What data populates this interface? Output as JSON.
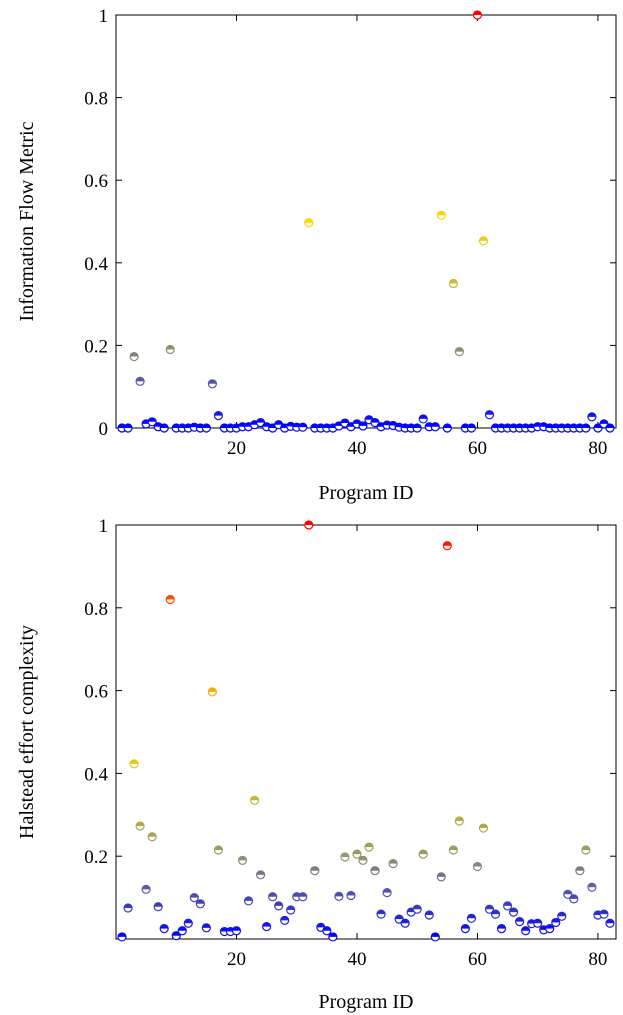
{
  "chart_data": [
    {
      "type": "scatter",
      "title": "",
      "xlabel": "Program ID",
      "ylabel": "Information Flow Metric",
      "xlim": [
        0,
        83
      ],
      "ylim": [
        0,
        1
      ],
      "xticks": [
        20,
        40,
        60,
        80
      ],
      "yticks": [
        0,
        0.2,
        0.4,
        0.6,
        0.8,
        1
      ],
      "ytick_labels": [
        "0",
        "0.2",
        "0.4",
        "0.6",
        "0.8",
        "1"
      ],
      "grid": false,
      "legend": "none",
      "color_scale": {
        "low": "#0000ff",
        "mid": "#999966",
        "high": "#ffd700",
        "max": "#ff0000"
      },
      "x": [
        1,
        2,
        3,
        4,
        5,
        6,
        7,
        8,
        9,
        10,
        11,
        12,
        13,
        14,
        15,
        16,
        17,
        18,
        19,
        20,
        21,
        22,
        23,
        24,
        25,
        26,
        27,
        28,
        29,
        30,
        31,
        32,
        33,
        34,
        35,
        36,
        37,
        38,
        39,
        40,
        41,
        42,
        43,
        44,
        45,
        46,
        47,
        48,
        49,
        50,
        51,
        52,
        53,
        54,
        55,
        56,
        57,
        58,
        59,
        60,
        61,
        62,
        63,
        64,
        65,
        66,
        67,
        68,
        69,
        70,
        71,
        72,
        73,
        74,
        75,
        76,
        77,
        78,
        79,
        80,
        81,
        82
      ],
      "y": [
        0,
        0,
        0.173,
        0.113,
        0.01,
        0.015,
        0.003,
        0,
        0.19,
        0,
        0,
        0,
        0.002,
        0,
        0,
        0.107,
        0.03,
        0,
        0,
        0,
        0.003,
        0.003,
        0.008,
        0.013,
        0.003,
        0,
        0.008,
        0,
        0.004,
        0.002,
        0.002,
        0.497,
        0,
        0,
        0,
        0,
        0.005,
        0.012,
        0.003,
        0.01,
        0.005,
        0.02,
        0.013,
        0.003,
        0.007,
        0.006,
        0.002,
        0,
        0,
        0,
        0.022,
        0.003,
        0.003,
        0.515,
        0,
        0.35,
        0.185,
        0,
        0,
        1,
        0.453,
        0.032,
        0,
        0,
        0,
        0,
        0,
        0,
        0,
        0.003,
        0.003,
        0,
        0,
        0,
        0,
        0,
        0,
        0,
        0.027,
        0,
        0.01,
        0
      ]
    },
    {
      "type": "scatter",
      "title": "",
      "xlabel": "Program ID",
      "ylabel": "Halstead effort complexity",
      "xlim": [
        0,
        83
      ],
      "ylim": [
        0,
        1
      ],
      "xticks": [
        20,
        40,
        60,
        80
      ],
      "yticks": [
        0.2,
        0.4,
        0.6,
        0.8,
        1
      ],
      "ytick_labels": [
        "0.2",
        "0.4",
        "0.6",
        "0.8",
        "1"
      ],
      "grid": false,
      "legend": "none",
      "color_scale": {
        "low": "#0000ff",
        "mid": "#999966",
        "high": "#ffd700",
        "max": "#ff0000"
      },
      "x": [
        1,
        2,
        3,
        4,
        5,
        6,
        7,
        8,
        9,
        10,
        11,
        12,
        13,
        14,
        15,
        16,
        17,
        18,
        19,
        20,
        21,
        22,
        23,
        24,
        25,
        26,
        27,
        28,
        29,
        30,
        31,
        32,
        33,
        34,
        35,
        36,
        37,
        38,
        39,
        40,
        41,
        42,
        43,
        44,
        45,
        46,
        47,
        48,
        49,
        50,
        51,
        52,
        53,
        54,
        55,
        56,
        57,
        58,
        59,
        60,
        61,
        62,
        63,
        64,
        65,
        66,
        67,
        68,
        69,
        70,
        71,
        72,
        73,
        74,
        75,
        76,
        77,
        78,
        79,
        80,
        81,
        82
      ],
      "y": [
        0.005,
        0.075,
        0.423,
        0.273,
        0.12,
        0.247,
        0.078,
        0.025,
        0.82,
        0.008,
        0.02,
        0.038,
        0.1,
        0.085,
        0.027,
        0.597,
        0.215,
        0.018,
        0.018,
        0.02,
        0.19,
        0.092,
        0.335,
        0.155,
        0.03,
        0.102,
        0.08,
        0.045,
        0.07,
        0.102,
        0.102,
        1,
        0.165,
        0.028,
        0.02,
        0.005,
        0.103,
        0.198,
        0.105,
        0.205,
        0.19,
        0.222,
        0.165,
        0.06,
        0.112,
        0.182,
        0.048,
        0.038,
        0.065,
        0.072,
        0.205,
        0.058,
        0.005,
        0.15,
        0.95,
        0.215,
        0.285,
        0.025,
        0.05,
        0.175,
        0.268,
        0.072,
        0.06,
        0.025,
        0.08,
        0.065,
        0.042,
        0.02,
        0.037,
        0.038,
        0.022,
        0.025,
        0.04,
        0.055,
        0.108,
        0.097,
        0.165,
        0.215,
        0.125,
        0.058,
        0.06,
        0.038
      ]
    }
  ]
}
